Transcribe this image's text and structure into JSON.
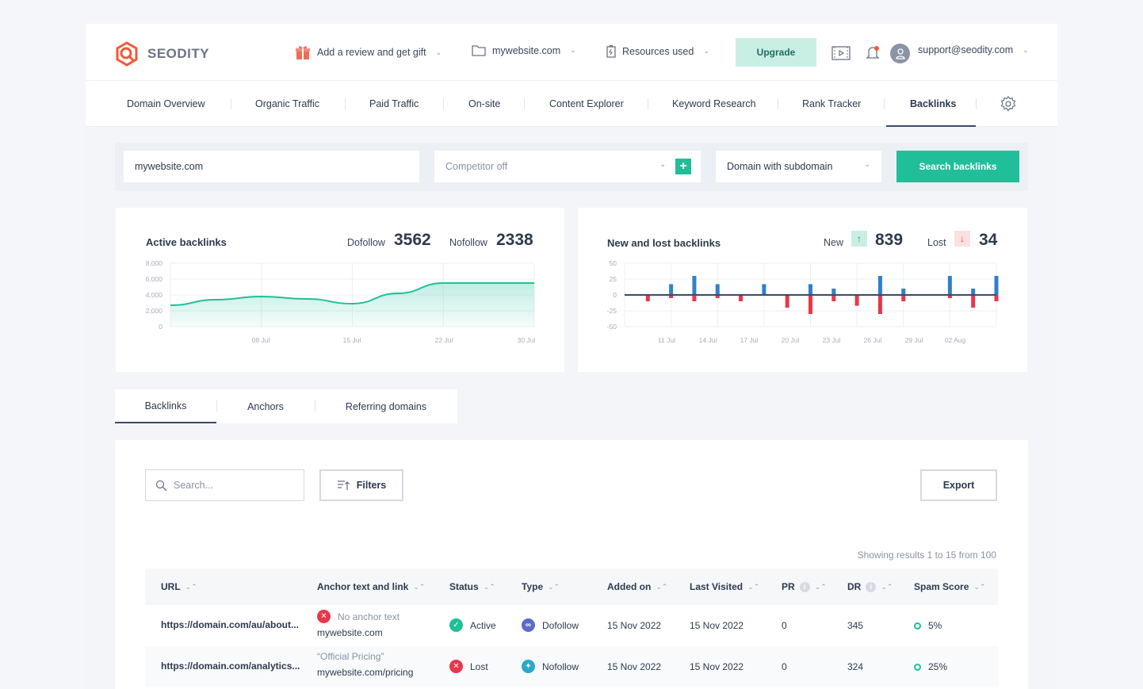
{
  "brand": {
    "name": "SEODITY",
    "accent": "#20bf9a"
  },
  "header": {
    "gift_label": "Add a review and get gift",
    "domain_label": "mywebsite.com",
    "resources_label": "Resources used",
    "upgrade_label": "Upgrade",
    "account_email": "support@seodity.com"
  },
  "nav": {
    "items": [
      "Domain Overview",
      "Organic Traffic",
      "Paid Traffic",
      "On-site",
      "Content Explorer",
      "Keyword Research",
      "Rank Tracker",
      "Backlinks"
    ],
    "active": "Backlinks"
  },
  "search": {
    "domain_value": "mywebsite.com",
    "competitor_value": "Competitor off",
    "scope_value": "Domain with subdomain",
    "button_label": "Search backlinks"
  },
  "active_backlinks": {
    "title": "Active backlinks",
    "dofollow_label": "Dofollow",
    "dofollow_value": "3562",
    "nofollow_label": "Nofollow",
    "nofollow_value": "2338"
  },
  "new_lost": {
    "title": "New and lost backlinks",
    "new_label": "New",
    "new_value": "839",
    "lost_label": "Lost",
    "lost_value": "34"
  },
  "chart_data": [
    {
      "type": "area",
      "title": "Active backlinks",
      "x_ticks": [
        "08 Jul",
        "15 Jul",
        "22 Jul",
        "30 Jul"
      ],
      "y_ticks": [
        "8,000",
        "6,000",
        "4,000",
        "2,000",
        "0"
      ],
      "ylim": [
        0,
        8000
      ],
      "xlim": [
        0,
        8
      ],
      "series": [
        {
          "x": [
            0,
            1,
            2,
            3,
            4,
            5,
            6,
            7,
            8
          ],
          "values": [
            2700,
            3400,
            3800,
            3500,
            2900,
            4200,
            5500,
            5500,
            5500
          ]
        }
      ],
      "color": "#20bf9a"
    },
    {
      "type": "bar",
      "title": "New and lost backlinks",
      "x_ticks": [
        "11 Jul",
        "14 Jul",
        "17 Jul",
        "20 Jul",
        "23 Jul",
        "26 Jul",
        "29 Jul",
        "02 Aug"
      ],
      "y_ticks": [
        "50",
        "25",
        "0",
        "-25",
        "-50"
      ],
      "ylim": [
        -50,
        50
      ],
      "xlim": [
        0,
        16
      ],
      "new_color": "#2f80c9",
      "lost_color": "#e8364b",
      "series": [
        {
          "name": "New",
          "x": [
            2,
            3,
            4,
            6,
            8,
            9,
            11,
            12,
            14,
            15,
            16
          ],
          "values": [
            17,
            30,
            17,
            17,
            17,
            10,
            30,
            10,
            30,
            10,
            30
          ]
        },
        {
          "name": "Lost",
          "x": [
            1,
            2,
            3,
            4,
            5,
            7,
            8,
            9,
            10,
            11,
            12,
            14,
            15,
            16
          ],
          "values": [
            -10,
            -5,
            -10,
            -5,
            -10,
            -20,
            -30,
            -10,
            -17,
            -30,
            -10,
            -5,
            -20,
            -10
          ]
        }
      ]
    }
  ],
  "tabs": [
    "Backlinks",
    "Anchors",
    "Referring domains"
  ],
  "table": {
    "search_placeholder": "Search...",
    "filters_label": "Filters",
    "export_label": "Export",
    "results_text": "Showing results 1 to 15 from 100",
    "columns": [
      "URL",
      "Anchor text and link",
      "Status",
      "Type",
      "Added on",
      "Last Visited",
      "PR",
      "DR",
      "Spam Score"
    ],
    "rows": [
      {
        "url": "https://domain.com/au/about...",
        "anchor": "No anchor text",
        "link": "mywebsite.com",
        "anchor_missing": true,
        "status": "Active",
        "type": "Dofollow",
        "added": "15 Nov 2022",
        "visited": "15 Nov 2022",
        "pr": "0",
        "dr": "345",
        "spam": "5%"
      },
      {
        "url": "https://domain.com/analytics...",
        "anchor": "“Official Pricing”",
        "link": "mywebsite.com/pricing",
        "anchor_missing": false,
        "status": "Lost",
        "type": "Nofollow",
        "added": "15 Nov 2022",
        "visited": "15 Nov 2022",
        "pr": "0",
        "dr": "324",
        "spam": "25%"
      }
    ]
  }
}
